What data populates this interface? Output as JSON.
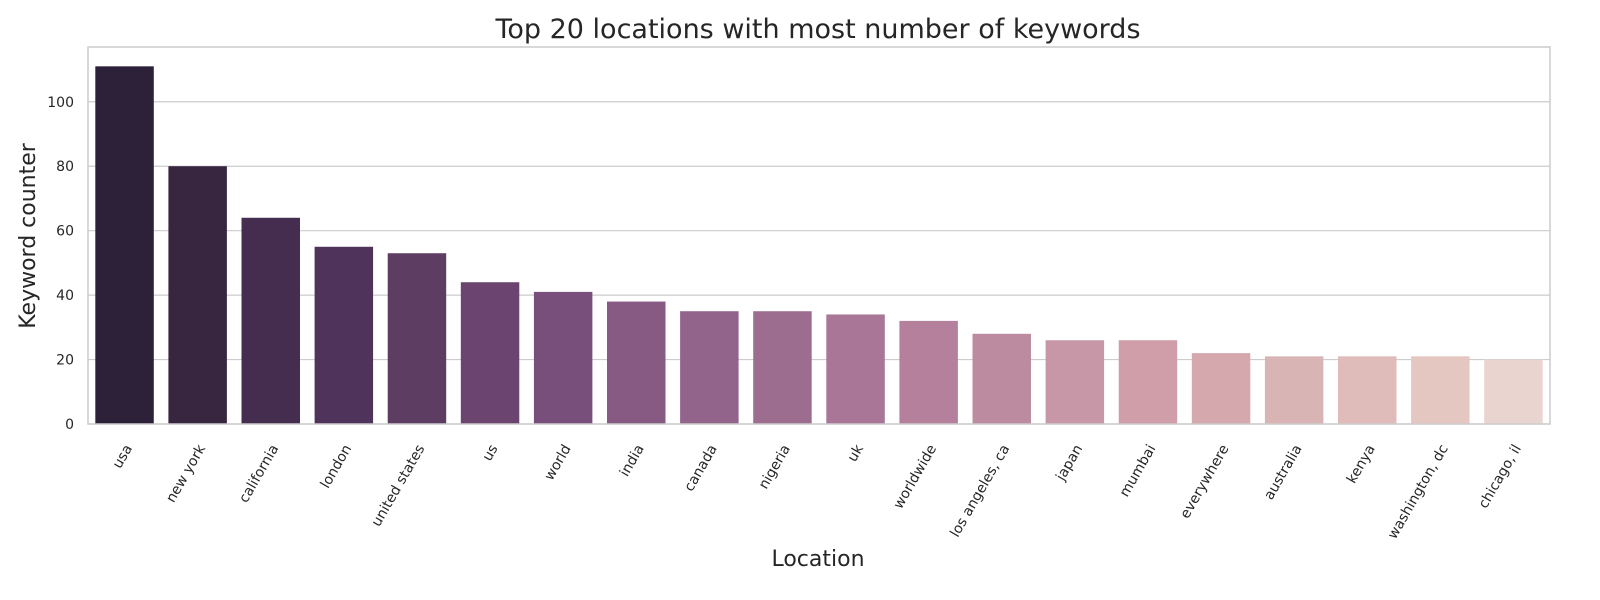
{
  "chart_data": {
    "type": "bar",
    "title": "Top 20 locations with most number of keywords",
    "xlabel": "Location",
    "ylabel": "Keyword counter",
    "categories": [
      "usa",
      "new york",
      "california",
      "london",
      "united states",
      "us",
      "world",
      "india",
      "canada",
      "nigeria",
      "uk",
      "worldwide",
      "los angeles, ca",
      "japan",
      "mumbai",
      "everywhere",
      "australia",
      "kenya",
      "washington, dc",
      "chicago, il"
    ],
    "values": [
      111,
      80,
      64,
      55,
      53,
      44,
      41,
      38,
      35,
      35,
      34,
      32,
      28,
      26,
      26,
      22,
      21,
      21,
      21,
      20
    ],
    "colors": [
      "#2d213a",
      "#382640",
      "#452d4f",
      "#50335a",
      "#5e3d63",
      "#6b456f",
      "#784f7a",
      "#865a82",
      "#92638b",
      "#9d6d8f",
      "#a97697",
      "#b4809c",
      "#bc8b9f",
      "#c797a7",
      "#cf9ea9",
      "#d4a8ad",
      "#d9b4b5",
      "#dfbcb9",
      "#e4c7c1",
      "#ead4cf"
    ],
    "ylim": [
      0,
      117
    ],
    "yticks": [
      0,
      20,
      40,
      60,
      80,
      100
    ],
    "grid": "y-axis horizontal",
    "legend": "none"
  }
}
